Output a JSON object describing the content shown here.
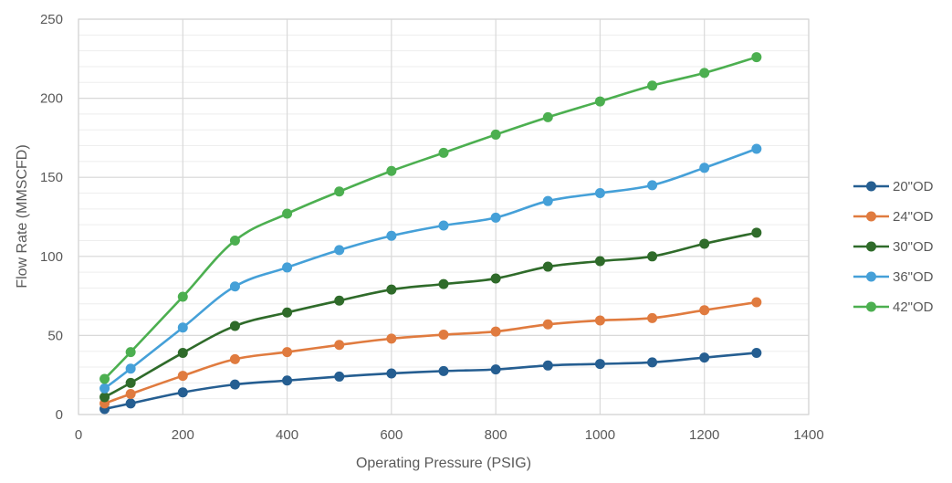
{
  "chart_data": {
    "type": "line",
    "title": "",
    "xlabel": "Operating Pressure (PSIG)",
    "ylabel": "Flow Rate (MMSCFD)",
    "xlim": [
      0,
      1400
    ],
    "ylim": [
      0,
      250
    ],
    "x_ticks": [
      0,
      200,
      400,
      600,
      800,
      1000,
      1200,
      1400
    ],
    "x_tick_labels": [
      "0",
      "200",
      "400",
      "600",
      "800",
      "1000",
      "1200",
      "1400"
    ],
    "y_ticks": [
      0,
      50,
      100,
      150,
      200,
      250
    ],
    "y_tick_labels": [
      "0",
      "50",
      "100",
      "150",
      "200",
      "250"
    ],
    "y_minor_step": 10,
    "grid": true,
    "legend_position": "right",
    "smooth": true,
    "x": [
      50,
      100,
      200,
      300,
      400,
      500,
      600,
      700,
      800,
      900,
      1000,
      1100,
      1200,
      1300
    ],
    "series": [
      {
        "name": "20\"OD",
        "color": "#255E91",
        "values": [
          3.5,
          7,
          14,
          19,
          21.5,
          24,
          26,
          27.5,
          28.5,
          31,
          32,
          33,
          36,
          39
        ]
      },
      {
        "name": "24\"OD",
        "color": "#E07B3F",
        "values": [
          7,
          13,
          24.5,
          35,
          39.5,
          44,
          48,
          50.5,
          52.5,
          57,
          59.5,
          61,
          66,
          71
        ]
      },
      {
        "name": "30\"OD",
        "color": "#2F6B2A",
        "values": [
          11,
          20,
          39,
          56,
          64.5,
          72,
          79,
          82.5,
          86,
          93.5,
          97,
          100,
          108,
          115
        ]
      },
      {
        "name": "36\"OD",
        "color": "#45A0D8",
        "values": [
          16.5,
          29,
          55,
          81,
          93,
          104,
          113,
          119.5,
          124.5,
          135,
          140,
          145,
          156,
          168
        ]
      },
      {
        "name": "42\"OD",
        "color": "#4CAF50",
        "values": [
          22.5,
          39.5,
          74.5,
          110,
          127,
          141,
          154,
          165.5,
          177,
          188,
          198,
          208,
          216,
          226
        ]
      }
    ]
  }
}
